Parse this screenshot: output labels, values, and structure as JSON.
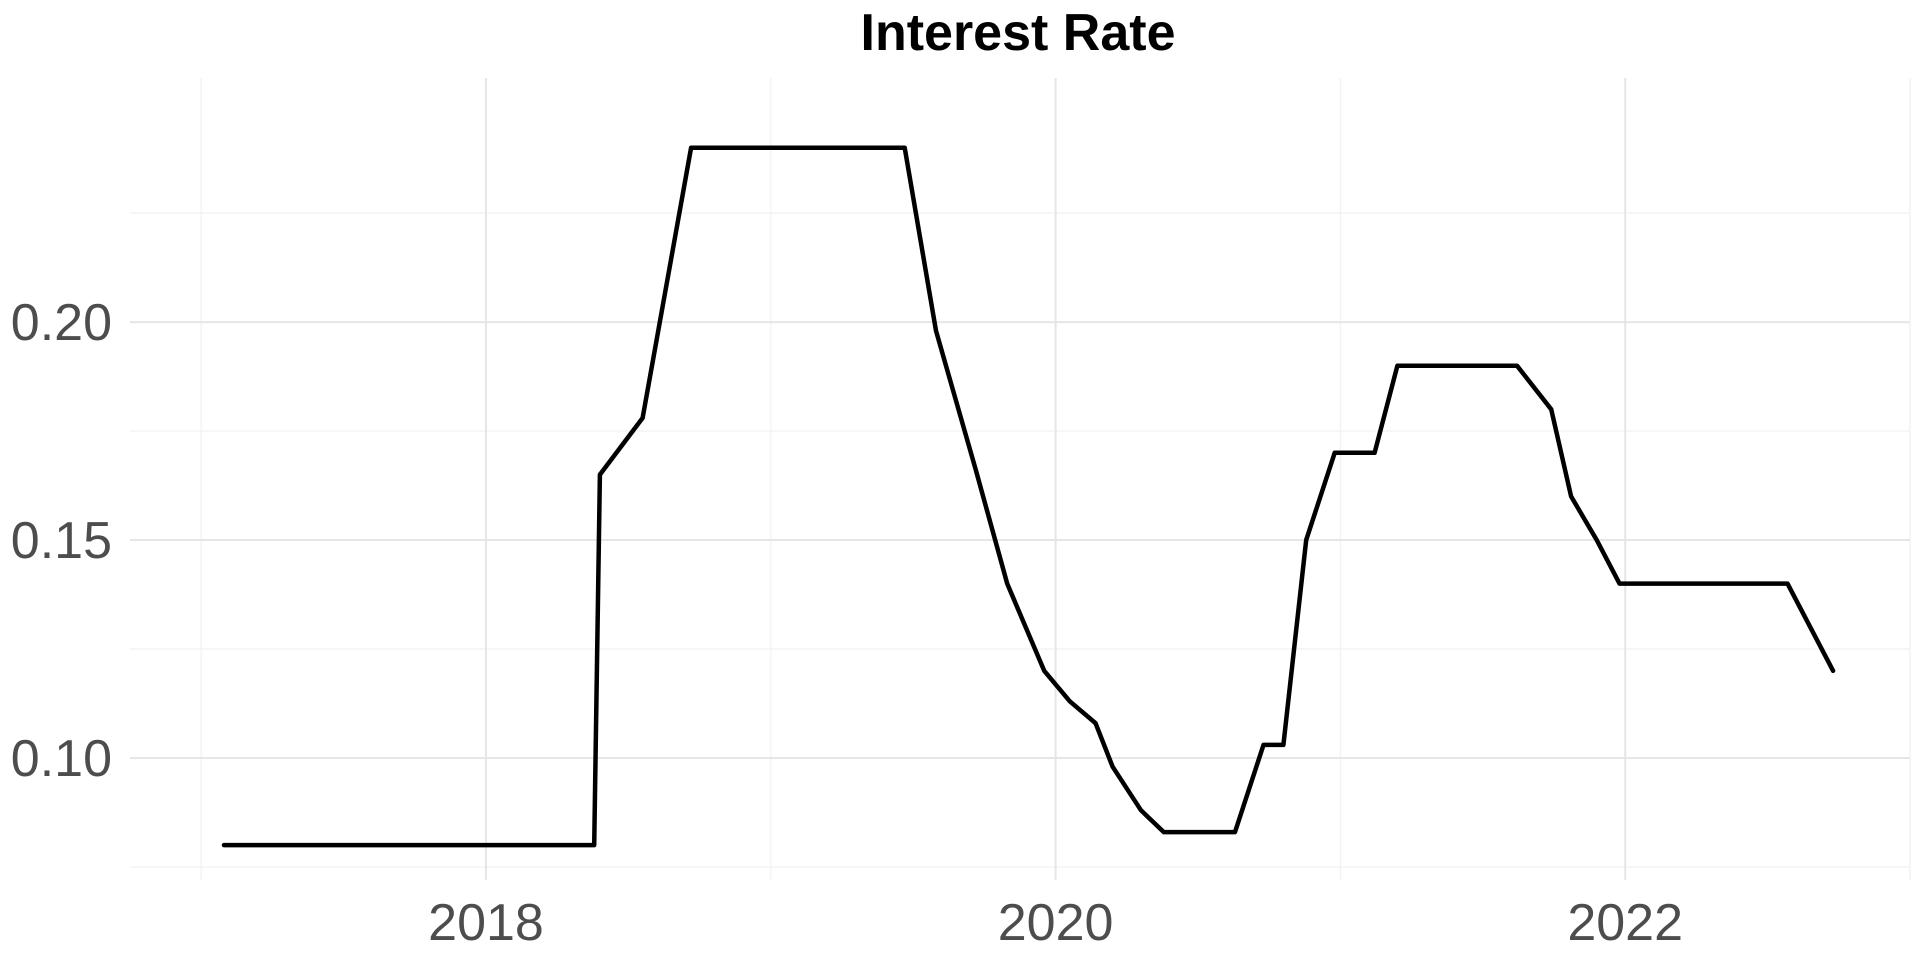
{
  "chart_data": {
    "type": "line",
    "title": "Interest Rate",
    "xlabel": "",
    "ylabel": "",
    "x_type": "year",
    "xlim": [
      2016.75,
      2023.0
    ],
    "ylim": [
      0.072,
      0.256
    ],
    "x_ticks": [
      2018,
      2020,
      2022
    ],
    "x_tick_labels": [
      "2018",
      "2020",
      "2022"
    ],
    "x_minor_ticks": [
      2017,
      2019,
      2021,
      2023
    ],
    "y_ticks": [
      0.1,
      0.15,
      0.2
    ],
    "y_tick_labels": [
      "0.10",
      "0.15",
      "0.20"
    ],
    "y_minor_ticks": [
      0.075,
      0.125,
      0.175,
      0.225
    ],
    "grid": true,
    "legend": "none",
    "line_color": "#000000",
    "series": [
      {
        "x": [
          2017.08,
          2018.38,
          2018.4,
          2018.55,
          2018.72,
          2019.47,
          2019.58,
          2019.72,
          2019.83,
          2019.96,
          2020.05,
          2020.14,
          2020.2,
          2020.3,
          2020.38,
          2020.63,
          2020.73,
          2020.8,
          2020.88,
          2020.98,
          2021.12,
          2021.2,
          2021.62,
          2021.74,
          2021.81,
          2021.9,
          2021.98,
          2022.57,
          2022.65,
          2022.73
        ],
        "y": [
          0.08,
          0.08,
          0.165,
          0.178,
          0.24,
          0.24,
          0.198,
          0.166,
          0.14,
          0.12,
          0.113,
          0.108,
          0.098,
          0.088,
          0.083,
          0.083,
          0.103,
          0.103,
          0.15,
          0.17,
          0.17,
          0.19,
          0.19,
          0.18,
          0.16,
          0.15,
          0.14,
          0.14,
          0.13,
          0.12
        ]
      }
    ]
  }
}
